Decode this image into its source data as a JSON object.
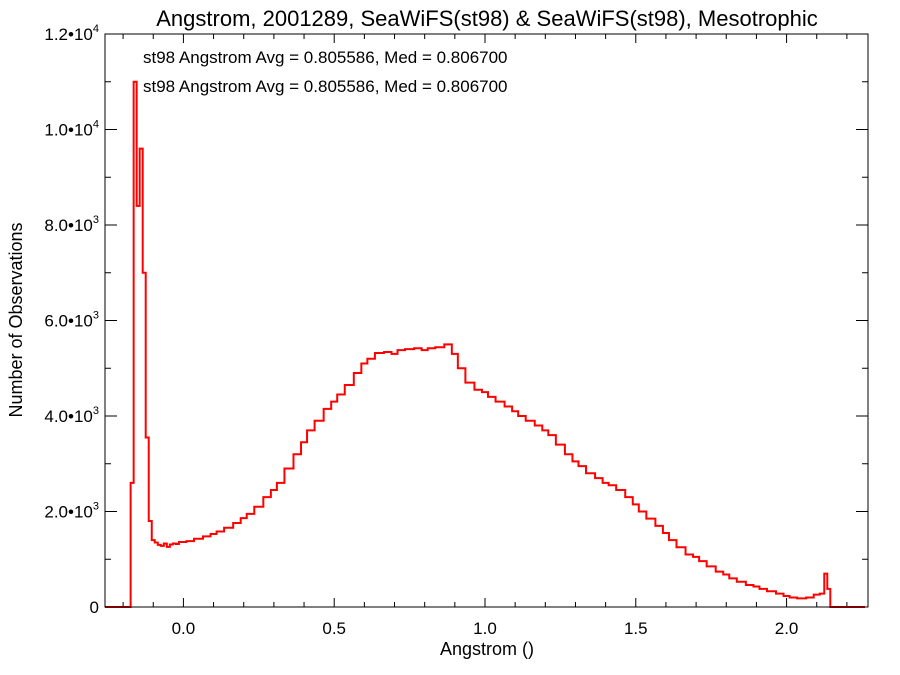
{
  "chart_data": {
    "type": "line",
    "title": "Angstrom, 2001289, SeaWiFS(st98) & SeaWiFS(st98), Mesotrophic",
    "xlabel": "Angstrom ()",
    "ylabel": "Number of Observations",
    "xlim": [
      -0.26,
      2.27
    ],
    "ylim": [
      0,
      12000
    ],
    "x_ticks": [
      {
        "value": 0.0,
        "label": "0.0"
      },
      {
        "value": 0.5,
        "label": "0.5"
      },
      {
        "value": 1.0,
        "label": "1.0"
      },
      {
        "value": 1.5,
        "label": "1.5"
      },
      {
        "value": 2.0,
        "label": "2.0"
      }
    ],
    "y_ticks": [
      {
        "value": 0,
        "mant": "0",
        "exp": ""
      },
      {
        "value": 2000,
        "mant": "2.0•10",
        "exp": "3"
      },
      {
        "value": 4000,
        "mant": "4.0•10",
        "exp": "3"
      },
      {
        "value": 6000,
        "mant": "6.0•10",
        "exp": "3"
      },
      {
        "value": 8000,
        "mant": "8.0•10",
        "exp": "3"
      },
      {
        "value": 10000,
        "mant": "1.0•10",
        "exp": "4"
      },
      {
        "value": 12000,
        "mant": "1.2•10",
        "exp": "4"
      }
    ],
    "grid": false,
    "bin_width": 0.01,
    "annotations": [
      {
        "text": "st98 Angstrom Avg = 0.805586, Med = 0.806700",
        "color": "#000000"
      },
      {
        "text": "st98 Angstrom Avg = 0.805586, Med = 0.806700",
        "color": "#ff0000"
      }
    ],
    "series": [
      {
        "color": "#ff0000",
        "x": [
          -0.26,
          -0.25,
          -0.24,
          -0.23,
          -0.22,
          -0.21,
          -0.2,
          -0.19,
          -0.18,
          -0.17,
          -0.16,
          -0.15,
          -0.14,
          -0.13,
          -0.12,
          -0.11,
          -0.1,
          -0.09,
          -0.08,
          -0.07,
          -0.06,
          -0.05,
          -0.04,
          -0.03,
          -0.02,
          -0.01,
          0.0,
          0.02,
          0.05,
          0.08,
          0.1,
          0.12,
          0.15,
          0.18,
          0.2,
          0.22,
          0.25,
          0.28,
          0.3,
          0.32,
          0.35,
          0.38,
          0.4,
          0.42,
          0.45,
          0.48,
          0.5,
          0.52,
          0.55,
          0.58,
          0.6,
          0.62,
          0.65,
          0.68,
          0.7,
          0.72,
          0.75,
          0.78,
          0.8,
          0.82,
          0.85,
          0.88,
          0.9,
          0.92,
          0.95,
          0.98,
          1.0,
          1.02,
          1.05,
          1.08,
          1.1,
          1.12,
          1.15,
          1.18,
          1.2,
          1.22,
          1.25,
          1.28,
          1.3,
          1.32,
          1.35,
          1.38,
          1.4,
          1.42,
          1.45,
          1.48,
          1.5,
          1.52,
          1.55,
          1.58,
          1.6,
          1.62,
          1.65,
          1.68,
          1.7,
          1.72,
          1.75,
          1.78,
          1.8,
          1.82,
          1.85,
          1.88,
          1.9,
          1.92,
          1.95,
          1.98,
          2.0,
          2.02,
          2.05,
          2.08,
          2.1,
          2.12,
          2.13,
          2.14,
          2.15,
          2.16,
          2.17,
          2.18,
          2.19,
          2.2,
          2.21,
          2.22,
          2.23,
          2.24,
          2.25,
          2.26
        ],
        "values": [
          0,
          0,
          0,
          0,
          0,
          0,
          0,
          0,
          0,
          2600,
          11000,
          8400,
          9600,
          7000,
          3550,
          1800,
          1400,
          1350,
          1300,
          1280,
          1330,
          1260,
          1310,
          1330,
          1320,
          1360,
          1360,
          1380,
          1430,
          1480,
          1530,
          1580,
          1660,
          1760,
          1860,
          1950,
          2100,
          2300,
          2450,
          2600,
          2900,
          3200,
          3450,
          3700,
          3900,
          4150,
          4300,
          4450,
          4650,
          4900,
          5100,
          5200,
          5320,
          5340,
          5300,
          5380,
          5400,
          5420,
          5380,
          5420,
          5440,
          5500,
          5300,
          5000,
          4700,
          4550,
          4500,
          4400,
          4300,
          4200,
          4100,
          4000,
          3900,
          3800,
          3700,
          3600,
          3400,
          3200,
          3050,
          2950,
          2800,
          2700,
          2600,
          2550,
          2450,
          2300,
          2150,
          2000,
          1850,
          1700,
          1550,
          1400,
          1250,
          1100,
          1050,
          960,
          850,
          740,
          680,
          600,
          530,
          460,
          430,
          380,
          330,
          280,
          230,
          200,
          180,
          200,
          260,
          280,
          700,
          380,
          0,
          0,
          0,
          0,
          0,
          0,
          0,
          0,
          0,
          0,
          0,
          0
        ]
      }
    ]
  }
}
